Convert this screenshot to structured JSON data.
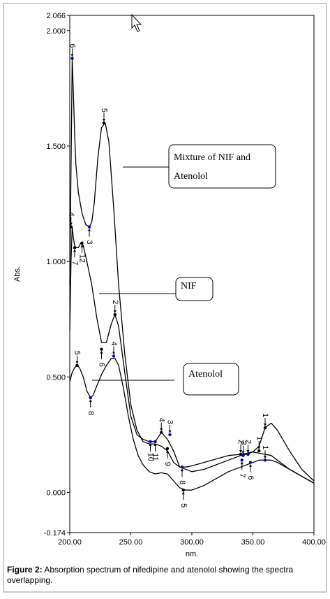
{
  "chart_data": {
    "type": "line",
    "xlabel": "nm.",
    "ylabel": "Abs.",
    "xlim": [
      200,
      400
    ],
    "ylim": [
      -0.174,
      2.066
    ],
    "x_ticks": [
      "200.00",
      "250.00",
      "300.00",
      "350.00",
      "400.00"
    ],
    "y_ticks": [
      {
        "value": 2.066,
        "label": "2.066"
      },
      {
        "value": 2.0,
        "label": "2.000"
      },
      {
        "value": 1.5,
        "label": "1.500"
      },
      {
        "value": 1.0,
        "label": "1.000"
      },
      {
        "value": 0.5,
        "label": "0.500"
      },
      {
        "value": 0.0,
        "label": "0.000"
      },
      {
        "value": -0.174,
        "label": "-0.174"
      }
    ],
    "series": [
      {
        "x": [
          200,
          201,
          202,
          203,
          204,
          205,
          207,
          210,
          213,
          216,
          218,
          220,
          223,
          226,
          229,
          232,
          236,
          240,
          245,
          250,
          255,
          260,
          265,
          270,
          275,
          280,
          285,
          290,
          295,
          300,
          310,
          320,
          330,
          340,
          350,
          355,
          360,
          365,
          370,
          380,
          390,
          400
        ],
        "y": [
          0.9,
          1.4,
          1.88,
          1.72,
          1.55,
          1.42,
          1.3,
          1.21,
          1.16,
          1.15,
          1.17,
          1.25,
          1.45,
          1.58,
          1.6,
          1.52,
          1.23,
          0.9,
          0.6,
          0.38,
          0.27,
          0.22,
          0.21,
          0.21,
          0.2,
          0.18,
          0.13,
          0.11,
          0.11,
          0.115,
          0.13,
          0.145,
          0.16,
          0.165,
          0.175,
          0.2,
          0.28,
          0.3,
          0.27,
          0.18,
          0.1,
          0.05
        ]
      },
      {
        "x": [
          200,
          201,
          202,
          203,
          204,
          205,
          207,
          209,
          211,
          214,
          218,
          222,
          226,
          230,
          234,
          237,
          240,
          245,
          250,
          255,
          260,
          265,
          270,
          275,
          280,
          285,
          290,
          300,
          310,
          320,
          330,
          340,
          345,
          350,
          355,
          360,
          365,
          370,
          380,
          390,
          400
        ],
        "y": [
          0.7,
          1.0,
          1.15,
          1.1,
          1.07,
          1.06,
          1.06,
          1.08,
          1.07,
          1.0,
          0.9,
          0.76,
          0.65,
          0.65,
          0.73,
          0.77,
          0.72,
          0.52,
          0.33,
          0.25,
          0.23,
          0.22,
          0.22,
          0.26,
          0.23,
          0.18,
          0.11,
          0.09,
          0.1,
          0.12,
          0.14,
          0.16,
          0.165,
          0.175,
          0.17,
          0.165,
          0.16,
          0.14,
          0.1,
          0.07,
          0.04
        ]
      },
      {
        "x": [
          200,
          202,
          204,
          206,
          208,
          211,
          214,
          217,
          219,
          222,
          226,
          230,
          234,
          237,
          240,
          244,
          248,
          252,
          256,
          260,
          265,
          270,
          275,
          280,
          285,
          290,
          295,
          300,
          310,
          320,
          330,
          340,
          350,
          355,
          360,
          365,
          370,
          380,
          390,
          400
        ],
        "y": [
          0.48,
          0.52,
          0.54,
          0.55,
          0.54,
          0.5,
          0.44,
          0.41,
          0.42,
          0.46,
          0.51,
          0.55,
          0.58,
          0.58,
          0.55,
          0.45,
          0.33,
          0.23,
          0.16,
          0.12,
          0.09,
          0.08,
          0.085,
          0.08,
          0.05,
          0.02,
          0.01,
          0.01,
          0.03,
          0.06,
          0.09,
          0.11,
          0.13,
          0.14,
          0.14,
          0.14,
          0.13,
          0.1,
          0.07,
          0.04
        ]
      }
    ],
    "peak_markers": [
      {
        "x": 202,
        "y": 1.88,
        "label": "6",
        "dir": "down",
        "color": "#0000cc"
      },
      {
        "x": 228,
        "y": 1.6,
        "label": "5",
        "dir": "down",
        "color": "#000000"
      },
      {
        "x": 216,
        "y": 1.15,
        "label": "3",
        "dir": "up",
        "color": "#0000cc"
      },
      {
        "x": 201,
        "y": 1.15,
        "label": "4",
        "dir": "down",
        "color": "#000000"
      },
      {
        "x": 210,
        "y": 1.08,
        "label": "12",
        "dir": "up",
        "color": "#000000"
      },
      {
        "x": 204,
        "y": 1.06,
        "label": "7",
        "dir": "up",
        "color": "#000000"
      },
      {
        "x": 237,
        "y": 0.77,
        "label": "2",
        "dir": "down",
        "color": "#000000"
      },
      {
        "x": 226,
        "y": 0.62,
        "label": "6",
        "dir": "up",
        "color": "#000000"
      },
      {
        "x": 206,
        "y": 0.55,
        "label": "5",
        "dir": "down",
        "color": "#000000"
      },
      {
        "x": 236,
        "y": 0.59,
        "label": "4",
        "dir": "down",
        "color": "#0000cc"
      },
      {
        "x": 217,
        "y": 0.41,
        "label": "8",
        "dir": "up",
        "color": "#0000cc"
      },
      {
        "x": 275,
        "y": 0.26,
        "label": "4",
        "dir": "down",
        "color": "#000000"
      },
      {
        "x": 282,
        "y": 0.25,
        "label": "3",
        "dir": "down",
        "color": "#0000cc"
      },
      {
        "x": 266,
        "y": 0.22,
        "label": "10",
        "dir": "up",
        "color": "#0000cc"
      },
      {
        "x": 270,
        "y": 0.22,
        "label": "11",
        "dir": "up",
        "color": "#0000cc"
      },
      {
        "x": 280,
        "y": 0.19,
        "label": "9",
        "dir": "up",
        "color": "#000000"
      },
      {
        "x": 292,
        "y": 0.11,
        "label": "8",
        "dir": "up",
        "color": "#0000cc"
      },
      {
        "x": 293,
        "y": 0.01,
        "label": "5",
        "dir": "up",
        "color": "#000000"
      },
      {
        "x": 340,
        "y": 0.165,
        "label": "2",
        "dir": "down",
        "color": "#000000"
      },
      {
        "x": 342,
        "y": 0.16,
        "label": "3",
        "dir": "down",
        "color": "#0000cc"
      },
      {
        "x": 346,
        "y": 0.165,
        "label": "2",
        "dir": "down",
        "color": "#0000cc"
      },
      {
        "x": 355,
        "y": 0.18,
        "label": "1",
        "dir": "down",
        "color": "#000000"
      },
      {
        "x": 341,
        "y": 0.14,
        "label": "7",
        "dir": "up",
        "color": "#0000cc"
      },
      {
        "x": 348,
        "y": 0.13,
        "label": "6",
        "dir": "up",
        "color": "#0000cc"
      },
      {
        "x": 360,
        "y": 0.28,
        "label": "1",
        "dir": "down",
        "color": "#000000"
      },
      {
        "x": 360,
        "y": 0.14,
        "label": "1",
        "dir": "down",
        "color": "#0000cc"
      }
    ],
    "annotations": [
      {
        "lines": [
          "Mixture of NIF and",
          "Atenolol"
        ]
      },
      {
        "lines": [
          "NIF"
        ]
      },
      {
        "lines": [
          "Atenolol"
        ]
      }
    ]
  },
  "caption": {
    "label": "Figure 2:",
    "text": " Absorption spectrum of nifedipine and atenolol showing the spectra overlapping."
  }
}
